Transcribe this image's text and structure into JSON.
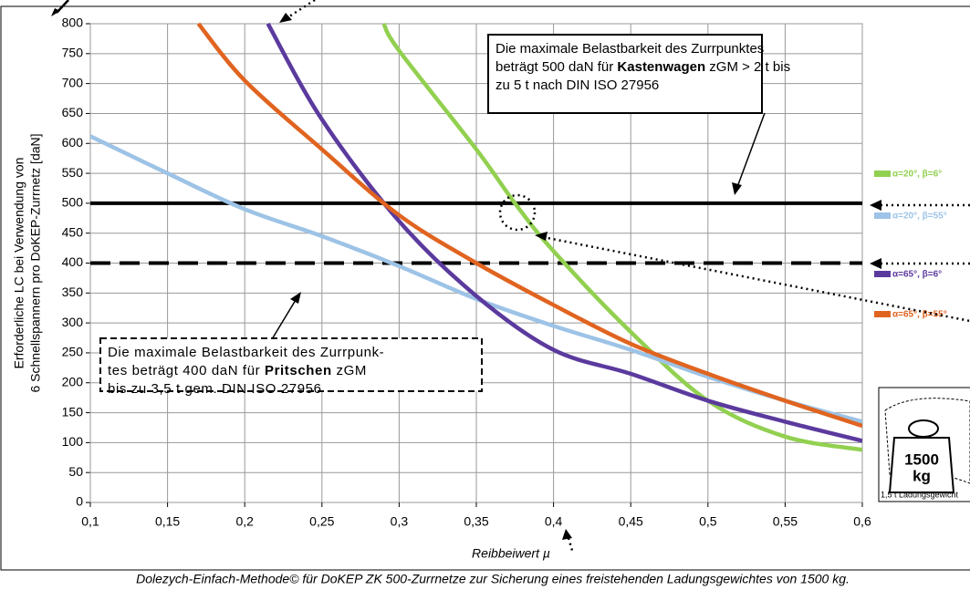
{
  "chart_data": {
    "type": "line",
    "y_label": [
      "Erforderliche LC bei Verwendung von",
      "6 Schnellspannern pro DoKEP-Zurrnetz [daN]"
    ],
    "x_label": "Reibbeiwert µ",
    "caption": "Dolezych-Einfach-Methode© für DoKEP ZK 500-Zurrnetze zur Sicherung eines freistehenden Ladungsgewichtes von 1500 kg.",
    "xlim": [
      0.1,
      0.6
    ],
    "xticks": [
      {
        "value": 0.1,
        "label": "0,1"
      },
      {
        "value": 0.15,
        "label": "0,15"
      },
      {
        "value": 0.2,
        "label": "0,2"
      },
      {
        "value": 0.25,
        "label": "0,25"
      },
      {
        "value": 0.3,
        "label": "0,3"
      },
      {
        "value": 0.35,
        "label": "0,35"
      },
      {
        "value": 0.4,
        "label": "0,4"
      },
      {
        "value": 0.45,
        "label": "0,45"
      },
      {
        "value": 0.5,
        "label": "0,5"
      },
      {
        "value": 0.55,
        "label": "0,55"
      },
      {
        "value": 0.6,
        "label": "0,6"
      }
    ],
    "ylim": [
      0,
      800
    ],
    "yticks": [
      0,
      50,
      100,
      150,
      200,
      250,
      300,
      350,
      400,
      450,
      500,
      550,
      600,
      650,
      700,
      750,
      800
    ],
    "grid": true,
    "legend": "right",
    "series": [
      {
        "name": "α=20°, β=6°",
        "color": "#92d050",
        "x": [
          0.29,
          0.3,
          0.35,
          0.375,
          0.4,
          0.45,
          0.5,
          0.55,
          0.6
        ],
        "values": [
          800,
          755,
          590,
          500,
          420,
          285,
          170,
          110,
          88
        ]
      },
      {
        "name": "α=20°, β=55°",
        "color": "#9dc3e6",
        "x": [
          0.1,
          0.15,
          0.2,
          0.25,
          0.3,
          0.35,
          0.4,
          0.45,
          0.5,
          0.55,
          0.6
        ],
        "values": [
          612,
          550,
          490,
          445,
          395,
          340,
          295,
          255,
          210,
          170,
          135
        ]
      },
      {
        "name": "α=65°, β=6°",
        "color": "#5b3a9e",
        "x": [
          0.215,
          0.25,
          0.3,
          0.35,
          0.4,
          0.45,
          0.5,
          0.55,
          0.6
        ],
        "values": [
          800,
          640,
          470,
          345,
          255,
          215,
          170,
          135,
          103
        ]
      },
      {
        "name": "α=65°, β=55°",
        "color": "#e06420",
        "x": [
          0.17,
          0.2,
          0.25,
          0.3,
          0.35,
          0.4,
          0.45,
          0.5,
          0.55,
          0.6
        ],
        "values": [
          800,
          705,
          590,
          480,
          400,
          330,
          265,
          215,
          170,
          128
        ]
      }
    ],
    "reference_lines": [
      {
        "value": 500,
        "style": "solid"
      },
      {
        "value": 400,
        "style": "dashed"
      }
    ],
    "annotations": [
      {
        "style": "solid",
        "lines": [
          [
            {
              "text": "Die maximale Belastbarkeit des Zurrpunktes"
            }
          ],
          [
            {
              "text": "beträgt 500 daN für "
            },
            {
              "text": "Kastenwagen",
              "bold": true
            },
            {
              "text": " zGM > 2 t bis"
            }
          ],
          [
            {
              "text": "zu 5 t nach DIN ISO 27956"
            }
          ]
        ]
      },
      {
        "style": "dashed",
        "lines": [
          [
            {
              "text": "Die maximale Belastbarkeit des Zurrpunk-"
            }
          ],
          [
            {
              "text": "tes beträgt 400 daN für "
            },
            {
              "text": "Pritschen",
              "bold": true
            },
            {
              "text": " zGM"
            }
          ],
          [
            {
              "text": "bis zu 3,5 t gem. DIN ISO 27956"
            }
          ]
        ]
      }
    ],
    "weight_icon": {
      "value": "1500",
      "unit": "kg",
      "caption": "1,5 t Ladungsgewicht"
    }
  }
}
